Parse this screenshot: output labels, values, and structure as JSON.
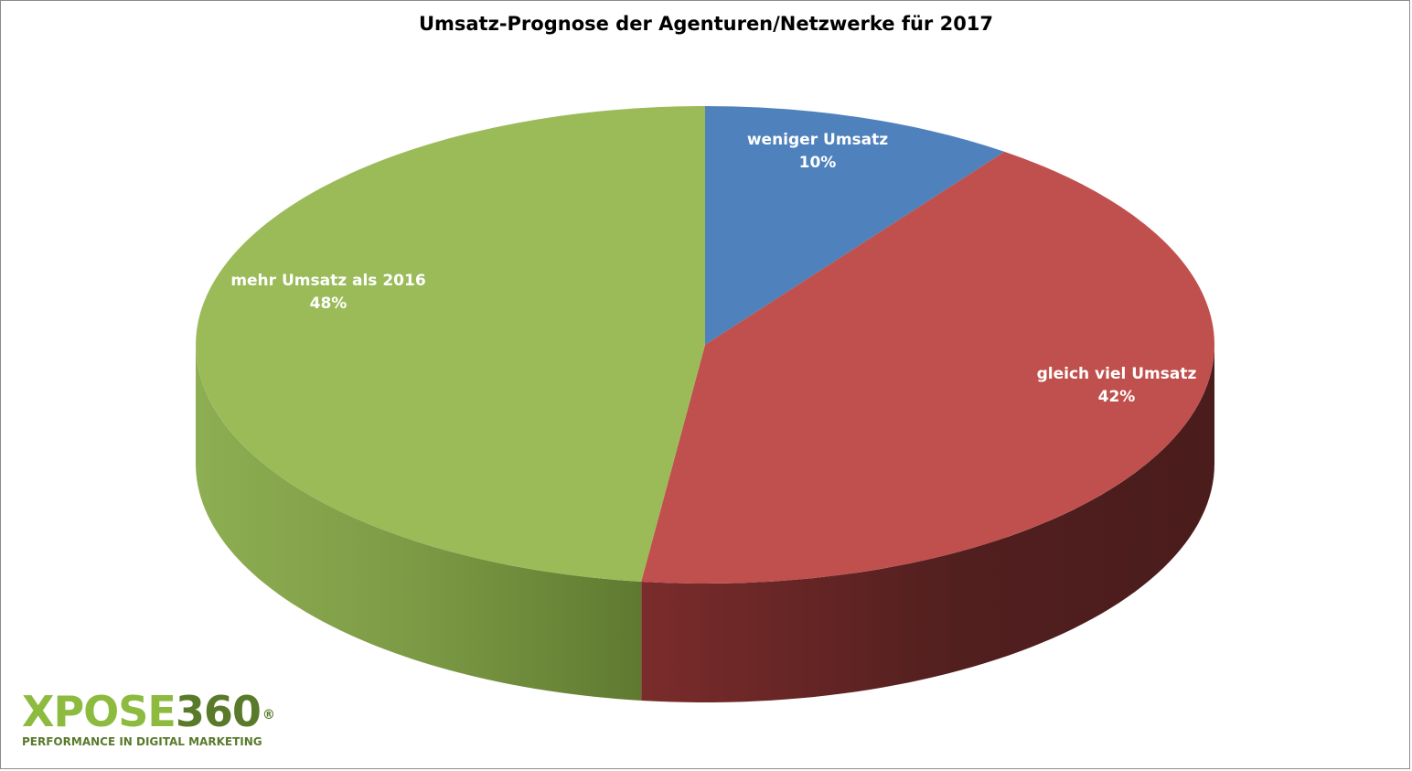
{
  "chart_data": {
    "type": "pie",
    "title": "Umsatz-Prognose der Agenturen/Netzwerke für 2017",
    "slices": [
      {
        "label": "weniger Umsatz",
        "value": 10,
        "value_label": "10%",
        "color": "#4f81bd",
        "side_color": "#2e4d73"
      },
      {
        "label": "gleich viel Umsatz",
        "value": 42,
        "value_label": "42%",
        "color": "#c0504d",
        "side_color": "#5a2020"
      },
      {
        "label": "mehr Umsatz als 2016",
        "value": 48,
        "value_label": "48%",
        "color": "#9bbb59",
        "side_color": "#6f8a3a"
      }
    ],
    "style": "3d",
    "legend": "none"
  },
  "logo": {
    "mark_prefix": "XPOSE",
    "mark_number": "360",
    "registered": "®",
    "tagline": "PERFORMANCE IN DIGITAL MARKETING"
  }
}
